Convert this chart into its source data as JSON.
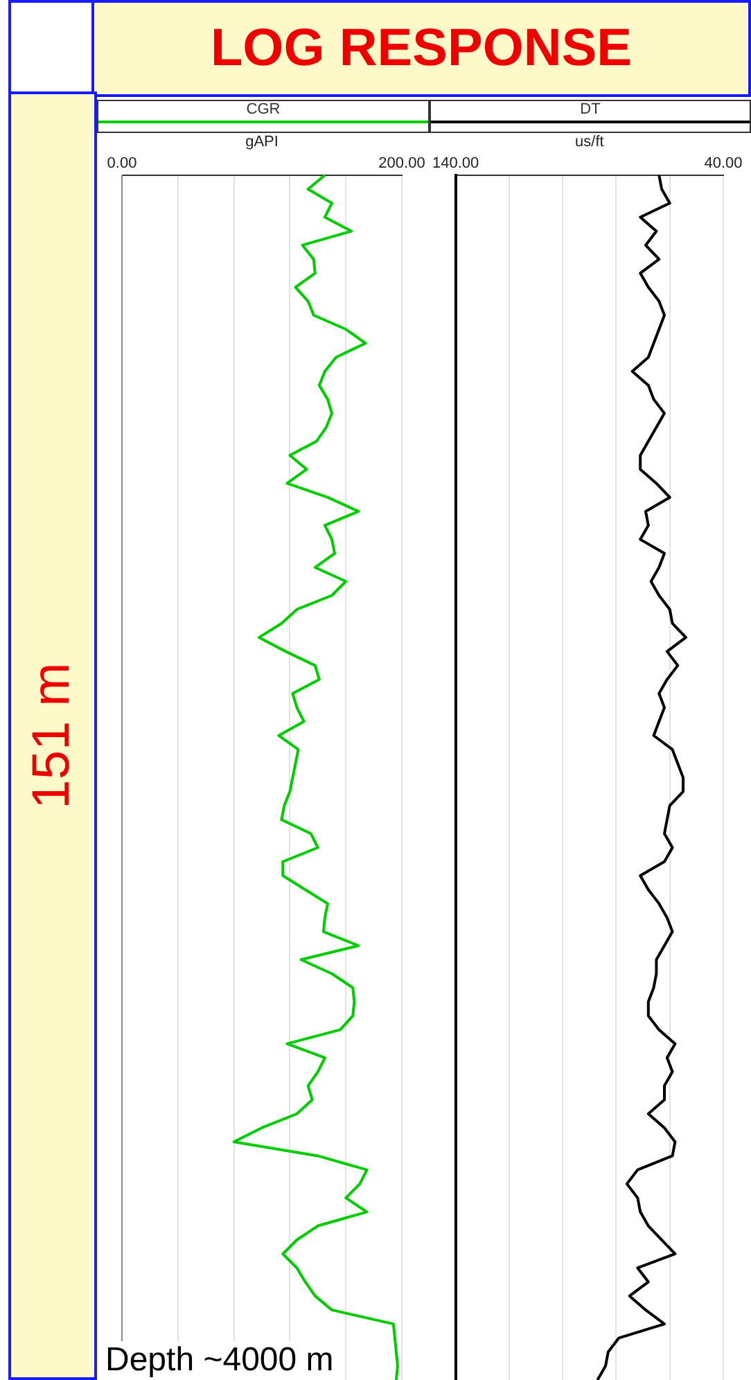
{
  "chart_data": [
    {
      "type": "line",
      "orientation": "horizontal",
      "title": "LOG RESPONSE",
      "ylabel": "151 m",
      "xlabel": "gAPI",
      "annotations": [
        "Depth ~4000 m"
      ],
      "legend": "top",
      "grid": "x",
      "tick_labels": "x",
      "categories": [
        null,
        null,
        null,
        null,
        null,
        null,
        null,
        null,
        null,
        null,
        null,
        null,
        null,
        null,
        null,
        null,
        null,
        null,
        null,
        null,
        null,
        null,
        null,
        null,
        null,
        null,
        null,
        null,
        null,
        null,
        null,
        null,
        null,
        null,
        null,
        null,
        null,
        null,
        null,
        null,
        null,
        null,
        null,
        null,
        null,
        null,
        null,
        null,
        null,
        null,
        null,
        null,
        null,
        null,
        null,
        null,
        null,
        null,
        null,
        null,
        null,
        null,
        null,
        null,
        null,
        null,
        null,
        null,
        null,
        null,
        null,
        null,
        null,
        null,
        null,
        null,
        null,
        null,
        null,
        null,
        null,
        null,
        null,
        null,
        null,
        null,
        null
      ],
      "xlim": [
        0,
        200
      ],
      "xticks": [
        {
          "value": 0,
          "label": "0.00"
        },
        {
          "value": 40,
          "label": null
        },
        {
          "value": 80,
          "label": null
        },
        {
          "value": 120,
          "label": null
        },
        {
          "value": 160,
          "label": null
        },
        {
          "value": 200,
          "label": "200.00"
        }
      ],
      "series": [
        {
          "name": "CGR",
          "color": "#00cc00",
          "values": [
            145,
            133,
            150,
            145,
            164,
            129,
            137,
            138,
            124,
            133,
            137,
            160,
            174,
            153,
            145,
            141,
            147,
            150,
            146,
            139,
            120,
            132,
            118,
            147,
            169,
            145,
            150,
            152,
            138,
            160,
            150,
            125,
            114,
            98,
            117,
            138,
            141,
            122,
            125,
            130,
            112,
            126,
            124,
            122,
            120,
            116,
            114,
            135,
            140,
            115,
            115,
            131,
            147,
            145,
            144,
            169,
            128,
            150,
            165,
            166,
            165,
            156,
            118,
            145,
            140,
            133,
            136,
            125,
            100,
            80,
            140,
            175,
            170,
            160,
            175,
            140,
            125,
            115,
            125,
            131,
            138,
            150,
            194,
            195,
            196,
            197,
            196
          ]
        }
      ]
    },
    {
      "type": "line",
      "orientation": "horizontal",
      "xlabel": "us/ft",
      "legend": "top",
      "grid": "x",
      "tick_labels": "x",
      "categories": [
        null,
        null,
        null,
        null,
        null,
        null,
        null,
        null,
        null,
        null,
        null,
        null,
        null,
        null,
        null,
        null,
        null,
        null,
        null,
        null,
        null,
        null,
        null,
        null,
        null,
        null,
        null,
        null,
        null,
        null,
        null,
        null,
        null,
        null,
        null,
        null,
        null,
        null,
        null,
        null,
        null,
        null,
        null,
        null,
        null,
        null,
        null,
        null,
        null,
        null,
        null,
        null,
        null,
        null,
        null,
        null,
        null,
        null,
        null,
        null,
        null,
        null,
        null,
        null,
        null,
        null,
        null,
        null,
        null,
        null,
        null,
        null,
        null,
        null,
        null,
        null,
        null,
        null,
        null,
        null,
        null,
        null,
        null,
        null,
        null,
        null,
        null
      ],
      "xlim": [
        140,
        40
      ],
      "xticks": [
        {
          "value": 140,
          "label": "140.00"
        },
        {
          "value": 120,
          "label": null
        },
        {
          "value": 100,
          "label": null
        },
        {
          "value": 80,
          "label": null
        },
        {
          "value": 60,
          "label": null
        },
        {
          "value": 40,
          "label": "40.00"
        }
      ],
      "series": [
        {
          "name": "DT",
          "color": "#000000",
          "values": [
            64,
            63,
            60,
            71,
            65,
            69,
            64,
            71,
            68,
            64,
            62,
            64,
            66,
            68,
            74,
            68,
            66,
            62,
            65,
            68,
            71,
            71,
            65,
            60,
            69,
            68,
            71,
            62,
            64,
            67,
            64,
            60,
            59,
            54,
            61,
            57,
            61,
            64,
            62,
            64,
            66,
            59,
            57,
            55,
            55,
            60,
            61,
            62,
            59,
            62,
            71,
            68,
            64,
            61,
            59,
            62,
            65,
            65,
            66,
            68,
            68,
            64,
            58,
            61,
            59,
            62,
            62,
            68,
            62,
            58,
            59,
            72,
            76,
            72,
            71,
            68,
            63,
            58,
            72,
            68,
            75,
            69,
            62,
            79,
            83,
            84,
            87
          ]
        }
      ]
    }
  ]
}
